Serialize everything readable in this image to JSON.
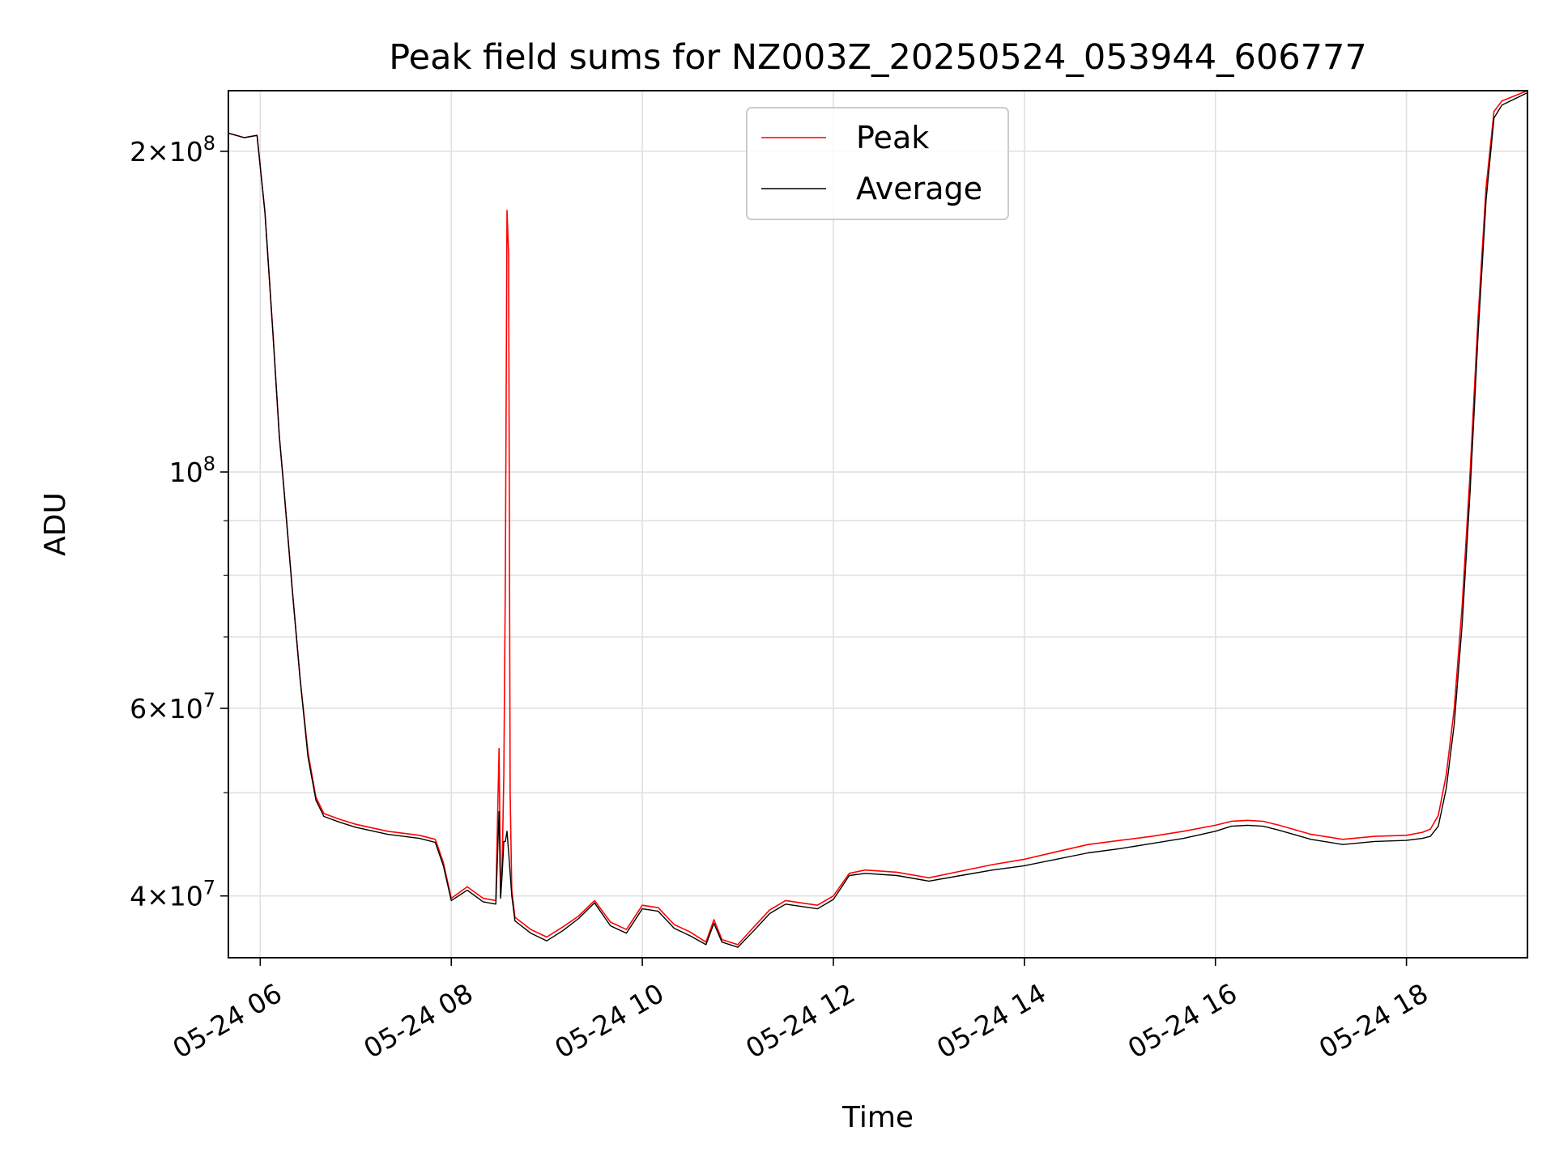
{
  "chart_data": {
    "type": "line",
    "title": "Peak field sums for NZ003Z_20250524_053944_606777",
    "xlabel": "Time",
    "ylabel": "ADU",
    "xscale": "time",
    "yscale": "log",
    "xlim": [
      "2025-05-24 05:40",
      "2025-05-24 19:16"
    ],
    "ylim": [
      35000000,
      228000000
    ],
    "grid": true,
    "legend": {
      "position": "top-center",
      "entries": [
        "Peak",
        "Average"
      ]
    },
    "x_ticks": [
      "05-24 06",
      "05-24 08",
      "05-24 10",
      "05-24 12",
      "05-24 14",
      "05-24 16",
      "05-24 18"
    ],
    "x_tick_values": [
      "2025-05-24 06:00",
      "2025-05-24 08:00",
      "2025-05-24 10:00",
      "2025-05-24 12:00",
      "2025-05-24 14:00",
      "2025-05-24 16:00",
      "2025-05-24 18:00"
    ],
    "y_major_ticks": [
      {
        "value": 40000000,
        "mantissa": "4",
        "exponent": "7"
      },
      {
        "value": 60000000,
        "mantissa": "6",
        "exponent": "7"
      },
      {
        "value": 100000000,
        "mantissa": "",
        "exponent": "8"
      },
      {
        "value": 200000000,
        "mantissa": "2",
        "exponent": "8"
      }
    ],
    "y_minor_ticks": [
      50000000,
      70000000,
      80000000,
      90000000
    ],
    "series": [
      {
        "name": "Peak",
        "color": "#ff0000",
        "x": [
          "2025-05-24 05:40",
          "2025-05-24 05:50",
          "2025-05-24 05:58",
          "2025-05-24 06:03",
          "2025-05-24 06:08",
          "2025-05-24 06:12",
          "2025-05-24 06:15",
          "2025-05-24 06:20",
          "2025-05-24 06:25",
          "2025-05-24 06:30",
          "2025-05-24 06:35",
          "2025-05-24 06:40",
          "2025-05-24 06:50",
          "2025-05-24 07:00",
          "2025-05-24 07:20",
          "2025-05-24 07:40",
          "2025-05-24 07:50",
          "2025-05-24 07:55",
          "2025-05-24 08:00",
          "2025-05-24 08:10",
          "2025-05-24 08:20",
          "2025-05-24 08:28",
          "2025-05-24 08:30",
          "2025-05-24 08:31",
          "2025-05-24 08:32",
          "2025-05-24 08:33",
          "2025-05-24 08:34",
          "2025-05-24 08:35",
          "2025-05-24 08:36",
          "2025-05-24 08:37",
          "2025-05-24 08:38",
          "2025-05-24 08:40",
          "2025-05-24 08:50",
          "2025-05-24 09:00",
          "2025-05-24 09:10",
          "2025-05-24 09:20",
          "2025-05-24 09:30",
          "2025-05-24 09:40",
          "2025-05-24 09:50",
          "2025-05-24 10:00",
          "2025-05-24 10:10",
          "2025-05-24 10:20",
          "2025-05-24 10:30",
          "2025-05-24 10:40",
          "2025-05-24 10:45",
          "2025-05-24 10:50",
          "2025-05-24 11:00",
          "2025-05-24 11:10",
          "2025-05-24 11:20",
          "2025-05-24 11:30",
          "2025-05-24 11:40",
          "2025-05-24 11:50",
          "2025-05-24 12:00",
          "2025-05-24 12:10",
          "2025-05-24 12:20",
          "2025-05-24 12:40",
          "2025-05-24 13:00",
          "2025-05-24 13:20",
          "2025-05-24 13:40",
          "2025-05-24 14:00",
          "2025-05-24 14:20",
          "2025-05-24 14:40",
          "2025-05-24 15:00",
          "2025-05-24 15:20",
          "2025-05-24 15:40",
          "2025-05-24 16:00",
          "2025-05-24 16:10",
          "2025-05-24 16:20",
          "2025-05-24 16:30",
          "2025-05-24 16:40",
          "2025-05-24 17:00",
          "2025-05-24 17:20",
          "2025-05-24 17:40",
          "2025-05-24 18:00",
          "2025-05-24 18:10",
          "2025-05-24 18:15",
          "2025-05-24 18:20",
          "2025-05-24 18:25",
          "2025-05-24 18:30",
          "2025-05-24 18:35",
          "2025-05-24 18:40",
          "2025-05-24 18:45",
          "2025-05-24 18:50",
          "2025-05-24 18:55",
          "2025-05-24 19:00",
          "2025-05-24 19:16"
        ],
        "y": [
          208000000,
          206000000,
          207000000,
          175000000,
          135000000,
          108000000,
          96000000,
          78000000,
          64000000,
          54500000,
          49500000,
          47800000,
          47200000,
          46700000,
          46000000,
          45600000,
          45200000,
          43000000,
          39800000,
          40800000,
          39800000,
          39600000,
          55000000,
          40000000,
          43000000,
          52000000,
          80000000,
          176000000,
          160000000,
          50000000,
          40500000,
          38200000,
          37200000,
          36600000,
          37400000,
          38300000,
          39600000,
          37800000,
          37200000,
          39200000,
          39000000,
          37600000,
          37000000,
          36200000,
          38000000,
          36400000,
          36000000,
          37400000,
          38800000,
          39600000,
          39400000,
          39200000,
          40000000,
          42000000,
          42300000,
          42100000,
          41600000,
          42200000,
          42800000,
          43300000,
          44000000,
          44700000,
          45100000,
          45500000,
          46000000,
          46600000,
          47000000,
          47100000,
          47000000,
          46600000,
          45700000,
          45200000,
          45500000,
          45600000,
          45900000,
          46200000,
          47600000,
          52000000,
          60000000,
          75000000,
          100000000,
          140000000,
          185000000,
          218000000,
          223000000,
          228000000
        ]
      },
      {
        "name": "Average",
        "color": "#000000",
        "x": [
          "2025-05-24 05:40",
          "2025-05-24 05:50",
          "2025-05-24 05:58",
          "2025-05-24 06:03",
          "2025-05-24 06:08",
          "2025-05-24 06:12",
          "2025-05-24 06:15",
          "2025-05-24 06:20",
          "2025-05-24 06:25",
          "2025-05-24 06:30",
          "2025-05-24 06:35",
          "2025-05-24 06:40",
          "2025-05-24 06:50",
          "2025-05-24 07:00",
          "2025-05-24 07:20",
          "2025-05-24 07:40",
          "2025-05-24 07:50",
          "2025-05-24 07:55",
          "2025-05-24 08:00",
          "2025-05-24 08:10",
          "2025-05-24 08:20",
          "2025-05-24 08:28",
          "2025-05-24 08:30",
          "2025-05-24 08:31",
          "2025-05-24 08:32",
          "2025-05-24 08:33",
          "2025-05-24 08:34",
          "2025-05-24 08:35",
          "2025-05-24 08:36",
          "2025-05-24 08:37",
          "2025-05-24 08:38",
          "2025-05-24 08:40",
          "2025-05-24 08:50",
          "2025-05-24 09:00",
          "2025-05-24 09:10",
          "2025-05-24 09:20",
          "2025-05-24 09:30",
          "2025-05-24 09:40",
          "2025-05-24 09:50",
          "2025-05-24 10:00",
          "2025-05-24 10:10",
          "2025-05-24 10:20",
          "2025-05-24 10:30",
          "2025-05-24 10:40",
          "2025-05-24 10:45",
          "2025-05-24 10:50",
          "2025-05-24 11:00",
          "2025-05-24 11:10",
          "2025-05-24 11:20",
          "2025-05-24 11:30",
          "2025-05-24 11:40",
          "2025-05-24 11:50",
          "2025-05-24 12:00",
          "2025-05-24 12:10",
          "2025-05-24 12:20",
          "2025-05-24 12:40",
          "2025-05-24 13:00",
          "2025-05-24 13:20",
          "2025-05-24 13:40",
          "2025-05-24 14:00",
          "2025-05-24 14:20",
          "2025-05-24 14:40",
          "2025-05-24 15:00",
          "2025-05-24 15:20",
          "2025-05-24 15:40",
          "2025-05-24 16:00",
          "2025-05-24 16:10",
          "2025-05-24 16:20",
          "2025-05-24 16:30",
          "2025-05-24 16:40",
          "2025-05-24 17:00",
          "2025-05-24 17:20",
          "2025-05-24 17:40",
          "2025-05-24 18:00",
          "2025-05-24 18:10",
          "2025-05-24 18:15",
          "2025-05-24 18:20",
          "2025-05-24 18:25",
          "2025-05-24 18:30",
          "2025-05-24 18:35",
          "2025-05-24 18:40",
          "2025-05-24 18:45",
          "2025-05-24 18:50",
          "2025-05-24 18:55",
          "2025-05-24 19:00",
          "2025-05-24 19:16"
        ],
        "y": [
          208000000,
          206000000,
          207000000,
          175000000,
          135000000,
          108000000,
          96000000,
          78000000,
          64000000,
          54000000,
          49200000,
          47500000,
          46900000,
          46400000,
          45700000,
          45300000,
          44900000,
          42700000,
          39600000,
          40500000,
          39500000,
          39300000,
          48000000,
          39800000,
          42000000,
          45000000,
          45000000,
          46000000,
          44000000,
          42000000,
          40000000,
          37900000,
          36900000,
          36300000,
          37100000,
          38100000,
          39400000,
          37500000,
          36900000,
          38900000,
          38700000,
          37300000,
          36700000,
          36000000,
          37700000,
          36200000,
          35800000,
          37100000,
          38500000,
          39300000,
          39100000,
          38900000,
          39700000,
          41800000,
          42000000,
          41800000,
          41300000,
          41800000,
          42300000,
          42700000,
          43300000,
          43900000,
          44300000,
          44800000,
          45300000,
          46000000,
          46500000,
          46600000,
          46500000,
          46100000,
          45200000,
          44700000,
          45000000,
          45100000,
          45300000,
          45500000,
          46500000,
          50500000,
          58000000,
          72000000,
          96000000,
          135000000,
          180000000,
          215000000,
          221000000,
          227000000
        ]
      }
    ]
  }
}
